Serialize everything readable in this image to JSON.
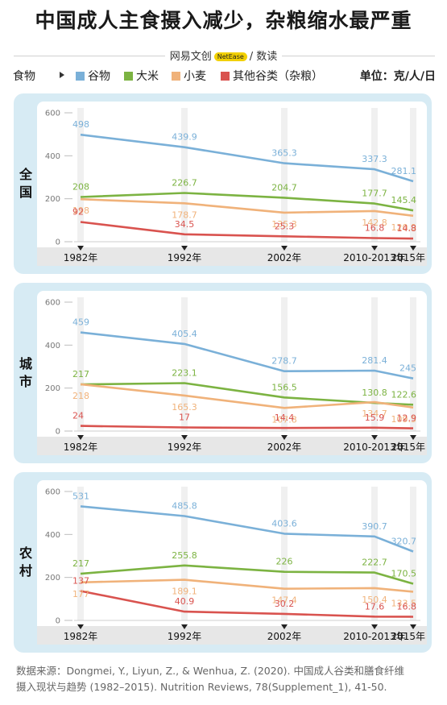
{
  "header": {
    "title": "中国成人主食摄入减少，杂粮缩水最严重",
    "brand_left": "网易文创",
    "brand_badge": "NetEase",
    "brand_right": "/ 数读"
  },
  "legend": {
    "lead": "食物",
    "unit": "单位：克/人/日"
  },
  "source": {
    "line1": "数据来源：Dongmei, Y., Liyun, Z., & Wenhua, Z. (2020). 中国成人谷类和膳食纤维",
    "line2": "摄入现状与趋势 (1982–2015). Nutrition Reviews, 78(Supplement_1), 41-50."
  },
  "chart_data": [
    {
      "type": "line",
      "panel": "全国",
      "x": [
        "1982年",
        "1992年",
        "2002年",
        "2010-2013年",
        "2015年"
      ],
      "ylim": [
        0,
        600
      ],
      "yticks": [
        0,
        200,
        400,
        600
      ],
      "series": [
        {
          "name": "谷物",
          "color": "#7ab0d8",
          "values": [
            498,
            439.9,
            365.3,
            337.3,
            281.1
          ]
        },
        {
          "name": "大米",
          "color": "#7cb342",
          "values": [
            208,
            226.7,
            204.7,
            177.7,
            145.4
          ]
        },
        {
          "name": "小麦",
          "color": "#f0b27a",
          "values": [
            198,
            178.7,
            135.3,
            142.8,
            120.9
          ]
        },
        {
          "name": "其他谷类（杂粮）",
          "color": "#d9534f",
          "values": [
            92,
            34.5,
            25.3,
            16.8,
            14.8
          ]
        }
      ]
    },
    {
      "type": "line",
      "panel": "城市",
      "x": [
        "1982年",
        "1992年",
        "2002年",
        "2010-2013年",
        "2015年"
      ],
      "ylim": [
        0,
        600
      ],
      "yticks": [
        0,
        200,
        400,
        600
      ],
      "series": [
        {
          "name": "谷物",
          "color": "#7ab0d8",
          "values": [
            459,
            405.4,
            278.7,
            281.4,
            245
          ]
        },
        {
          "name": "大米",
          "color": "#7cb342",
          "values": [
            217,
            223.1,
            156.5,
            130.8,
            122.6
          ]
        },
        {
          "name": "小麦",
          "color": "#f0b27a",
          "values": [
            218,
            165.3,
            107.8,
            134.7,
            109.5
          ]
        },
        {
          "name": "其他谷类（杂粮）",
          "color": "#d9534f",
          "values": [
            24,
            17,
            14.4,
            15.9,
            12.9
          ]
        }
      ]
    },
    {
      "type": "line",
      "panel": "农村",
      "x": [
        "1982年",
        "1992年",
        "2002年",
        "2010-2013年",
        "2015年"
      ],
      "ylim": [
        0,
        600
      ],
      "yticks": [
        0,
        200,
        400,
        600
      ],
      "series": [
        {
          "name": "谷物",
          "color": "#7ab0d8",
          "values": [
            531,
            485.8,
            403.6,
            390.7,
            320.7
          ]
        },
        {
          "name": "大米",
          "color": "#7cb342",
          "values": [
            217,
            255.8,
            226,
            222.7,
            170.5
          ]
        },
        {
          "name": "小麦",
          "color": "#f0b27a",
          "values": [
            177,
            189.1,
            147.4,
            150.4,
            133.5
          ]
        },
        {
          "name": "其他谷类（杂粮）",
          "color": "#d9534f",
          "values": [
            137,
            40.9,
            30.2,
            17.6,
            16.8
          ]
        }
      ]
    }
  ]
}
